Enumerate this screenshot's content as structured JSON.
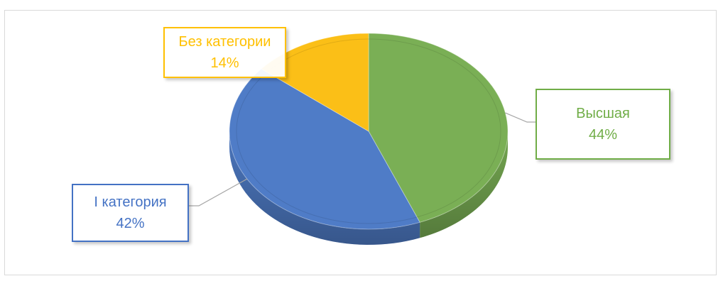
{
  "chart_data": {
    "type": "pie",
    "title": "",
    "categories": [
      "Высшая",
      "I категория",
      "Без категории"
    ],
    "values": [
      44,
      42,
      14
    ],
    "value_format": "percent",
    "legend": "none",
    "style": "3d",
    "colors": [
      "#7aaf55",
      "#4f7cc7",
      "#fbbf17"
    ],
    "label_colors": [
      "#70ad47",
      "#4472c4",
      "#ffc000"
    ],
    "data_labels": [
      {
        "name": "Высшая",
        "value": "44%"
      },
      {
        "name": "I категория",
        "value": "42%"
      },
      {
        "name": "Без категории",
        "value": "14%"
      }
    ]
  }
}
